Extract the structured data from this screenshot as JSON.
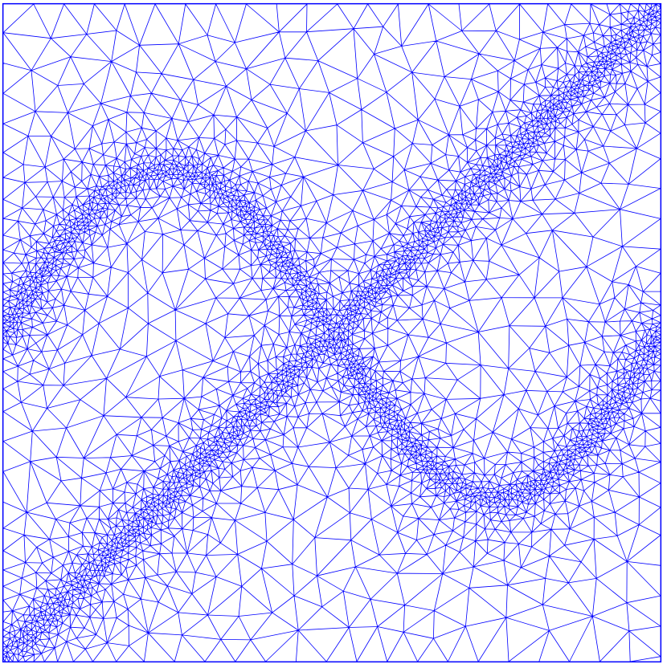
{
  "figure": {
    "type": "adaptive-triangular-mesh",
    "colors": {
      "background": "#ffffff",
      "edge": "#0000ff",
      "border": "#0000ff"
    },
    "refinement_features": [
      {
        "name": "diagonal-band",
        "shape": "line from bottom-left to top-right"
      },
      {
        "name": "sine-band",
        "shape": "wave from left-middle over upper-left hump, crossing center, down to lower-right trough, up to right edge"
      }
    ],
    "density": {
      "coarse_background": "sparse",
      "near_bands": "very dense"
    }
  }
}
